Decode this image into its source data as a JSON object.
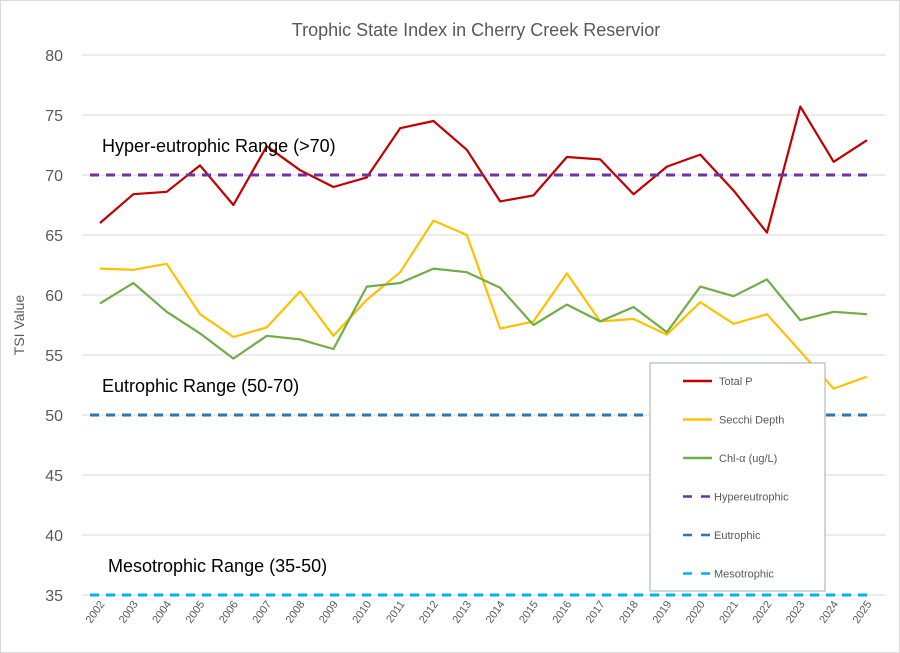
{
  "chart_data": {
    "type": "line",
    "title": "Trophic State Index in Cherry Creek Reservior",
    "xlabel": "",
    "ylabel": "TSI Value",
    "ylim": [
      35,
      80
    ],
    "yticks": [
      35,
      40,
      45,
      50,
      55,
      60,
      65,
      70,
      75,
      80
    ],
    "grid": true,
    "legend_position": "bottom-right (inside)",
    "categories": [
      "2002",
      "2003",
      "2004",
      "2005",
      "2006",
      "2007",
      "2008",
      "2009",
      "2010",
      "2011",
      "2012",
      "2013",
      "2014",
      "2015",
      "2016",
      "2017",
      "2018",
      "2019",
      "2020",
      "2021",
      "2022",
      "2023",
      "2024",
      "2025"
    ],
    "series": [
      {
        "name": "Total P",
        "color": "#c00000",
        "style": "solid",
        "values": [
          66.0,
          68.4,
          68.6,
          70.8,
          67.5,
          72.4,
          70.4,
          69.0,
          69.8,
          73.9,
          74.5,
          72.1,
          67.8,
          68.3,
          71.5,
          71.3,
          68.4,
          70.7,
          71.7,
          68.7,
          65.2,
          75.7,
          71.1,
          72.9
        ]
      },
      {
        "name": "Secchi Depth",
        "color": "#ffc000",
        "style": "solid",
        "values": [
          62.2,
          62.1,
          62.6,
          58.4,
          56.5,
          57.3,
          60.3,
          56.6,
          59.6,
          61.9,
          66.2,
          65.0,
          57.2,
          57.8,
          61.8,
          57.8,
          58.0,
          56.7,
          59.4,
          57.6,
          58.4,
          55.3,
          52.2,
          53.2
        ]
      },
      {
        "name": "Chl-α (ug/L)",
        "color": "#70ad47",
        "style": "solid",
        "values": [
          59.3,
          61.0,
          58.6,
          56.8,
          54.7,
          56.6,
          56.3,
          55.5,
          60.7,
          61.0,
          62.2,
          61.9,
          60.6,
          57.5,
          59.2,
          57.8,
          59.0,
          56.9,
          60.7,
          59.9,
          61.3,
          57.9,
          58.6,
          58.4
        ]
      },
      {
        "name": "Hypereutrophic",
        "color": "#7030a0",
        "style": "dashed",
        "constant": 70
      },
      {
        "name": "Eutrophic",
        "color": "#2e75b6",
        "style": "dashed",
        "constant": 50
      },
      {
        "name": "Mesotrophic",
        "color": "#00b0f0",
        "style": "dashed",
        "constant": 35
      }
    ],
    "annotations": [
      {
        "text": "Hyper-eutrophic Range (>70)",
        "y": 72.5
      },
      {
        "text": "Eutrophic Range (50-70)",
        "y": 52.5
      },
      {
        "text": "Mesotrophic Range (35-50)",
        "y": 37.5
      }
    ]
  }
}
